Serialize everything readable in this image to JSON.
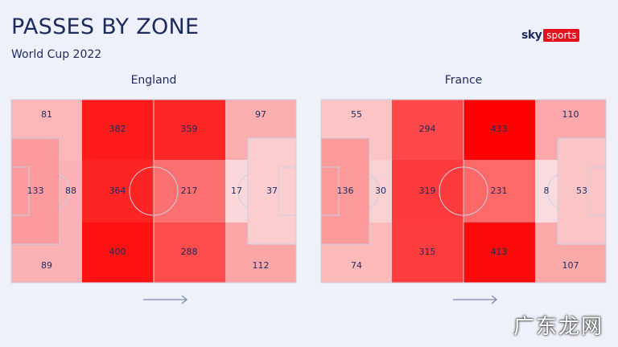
{
  "header": {
    "title": "PASSES BY ZONE",
    "subtitle": "World Cup 2022",
    "logo_sky": "sky",
    "logo_sports": "sports"
  },
  "colors": {
    "low": "#fbe0e2",
    "high": "#ff0000",
    "line": "#c9cfe3",
    "text": "#1d2a5e"
  },
  "watermark": "广东龙网",
  "chart_data": [
    {
      "type": "heatmap",
      "title": "England",
      "attack_direction": "right",
      "zones": {
        "left_top": 81,
        "left_box_outer": 133,
        "left_box_inner": 88,
        "left_bottom": 89,
        "midL_top": 382,
        "midL_center": 364,
        "midL_bottom": 400,
        "midR_top": 359,
        "midR_center": 217,
        "midR_bottom": 288,
        "right_top": 97,
        "right_box_inner": 17,
        "right_box_outer": 37,
        "right_bottom": 112
      }
    },
    {
      "type": "heatmap",
      "title": "France",
      "attack_direction": "right",
      "zones": {
        "left_top": 55,
        "left_box_outer": 136,
        "left_box_inner": 30,
        "left_bottom": 74,
        "midL_top": 294,
        "midL_center": 319,
        "midL_bottom": 315,
        "midR_top": 433,
        "midR_center": 231,
        "midR_bottom": 413,
        "right_top": 110,
        "right_box_inner": 8,
        "right_box_outer": 53,
        "right_bottom": 107
      }
    }
  ]
}
